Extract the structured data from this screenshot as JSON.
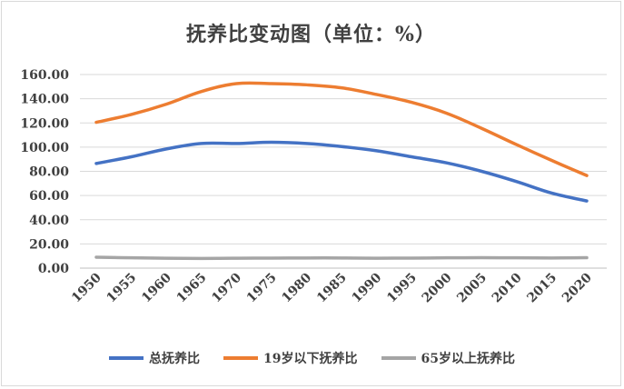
{
  "chart_data": {
    "type": "line",
    "title": "抚养比变动图（单位：%）",
    "x": [
      "1950",
      "1955",
      "1960",
      "1965",
      "1970",
      "1975",
      "1980",
      "1985",
      "1990",
      "1995",
      "2000",
      "2005",
      "2010",
      "2015",
      "2020"
    ],
    "ylim": [
      0,
      160
    ],
    "yticks": [
      "0.00",
      "20.00",
      "40.00",
      "60.00",
      "80.00",
      "100.00",
      "120.00",
      "140.00",
      "160.00"
    ],
    "grid": true,
    "legend_position": "bottom",
    "series": [
      {
        "name": "总抚养比",
        "color": "#4472c4",
        "values": [
          86.5,
          92,
          98.5,
          103,
          103,
          104,
          103,
          100.5,
          97,
          92,
          87,
          80,
          71.5,
          62,
          55.5
        ]
      },
      {
        "name": "19岁以下抚养比",
        "color": "#ed7d31",
        "values": [
          120.5,
          127,
          135.5,
          146,
          152.5,
          152.5,
          151.5,
          149,
          143.5,
          137,
          128,
          115.5,
          102,
          89,
          76.5
        ]
      },
      {
        "name": "65岁以上抚养比",
        "color": "#a5a5a5",
        "values": [
          9,
          8.5,
          8.2,
          8,
          8.2,
          8.3,
          8.4,
          8.4,
          8.2,
          8.3,
          8.5,
          8.6,
          8.5,
          8.4,
          8.6
        ]
      }
    ]
  }
}
